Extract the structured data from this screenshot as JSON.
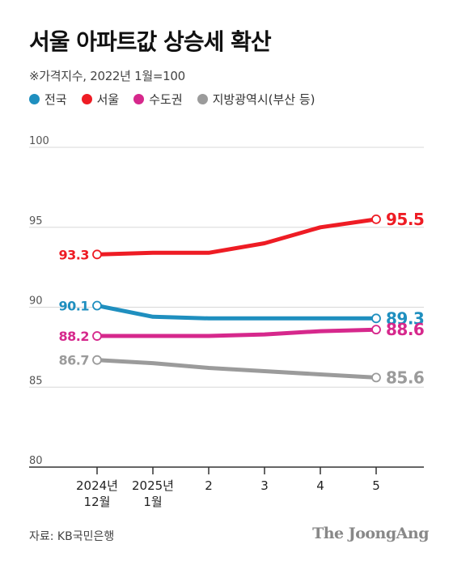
{
  "title": "서울 아파트값 상승세 확산",
  "subtitle": "※가격지수, 2022년 1월=100",
  "source": "자료: KB국민은행",
  "brand": "The JoongAng",
  "chart_data": {
    "type": "line",
    "x": [
      "2024년 12월",
      "2025년 1월",
      "2",
      "3",
      "4",
      "5"
    ],
    "x_tick_lines": [
      [
        "2024년",
        "12월"
      ],
      [
        "2025년",
        "1월"
      ],
      [
        "2"
      ],
      [
        "3"
      ],
      [
        "4"
      ],
      [
        "5"
      ]
    ],
    "ylim": [
      80,
      100
    ],
    "yticks": [
      80,
      85,
      90,
      95,
      100
    ],
    "grid": true,
    "legend_position": "top-left",
    "series": [
      {
        "name": "전국",
        "color": "#1f8fbf",
        "values": [
          90.1,
          89.4,
          89.3,
          89.3,
          89.3,
          89.3
        ],
        "start_label": "90.1",
        "end_label": "89.3"
      },
      {
        "name": "서울",
        "color": "#ee1c24",
        "values": [
          93.3,
          93.4,
          93.4,
          94.0,
          95.0,
          95.5
        ],
        "start_label": "93.3",
        "end_label": "95.5"
      },
      {
        "name": "수도권",
        "color": "#d6288c",
        "values": [
          88.2,
          88.2,
          88.2,
          88.3,
          88.5,
          88.6
        ],
        "start_label": "88.2",
        "end_label": "88.6"
      },
      {
        "name": "지방광역시(부산 등)",
        "color": "#9b9b9b",
        "values": [
          86.7,
          86.5,
          86.2,
          86.0,
          85.8,
          85.6
        ],
        "start_label": "86.7",
        "end_label": "85.6"
      }
    ]
  }
}
